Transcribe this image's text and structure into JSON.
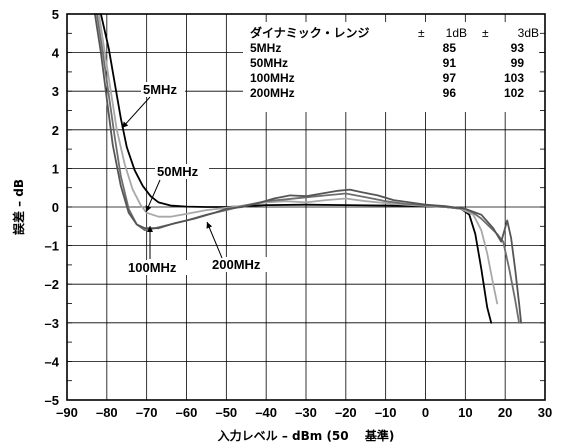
{
  "chart_data": {
    "type": "line",
    "title": "",
    "xlabel": "入力レベル – dBm (50",
    "xlabel_ref": "基準)",
    "ylabel": "誤差 – dB",
    "xlim": [
      -90,
      30
    ],
    "ylim": [
      -5,
      5
    ],
    "x_ticks": [
      "–90",
      "–80",
      "–70",
      "–60",
      "–50",
      "–40",
      "–30",
      "–20",
      "–10",
      "0",
      "10",
      "20",
      "30"
    ],
    "y_ticks": [
      "5",
      "4",
      "3",
      "2",
      "1",
      "0",
      "–1",
      "–2",
      "–3",
      "–4",
      "–5"
    ],
    "grid": true,
    "series": [
      {
        "name": "5MHz",
        "color": "#000000",
        "points": [
          [
            -81.5,
            5
          ],
          [
            -79.5,
            4.1
          ],
          [
            -78,
            3.2
          ],
          [
            -76.5,
            2.3
          ],
          [
            -75,
            1.55
          ],
          [
            -73,
            0.95
          ],
          [
            -71,
            0.55
          ],
          [
            -69,
            0.28
          ],
          [
            -67,
            0.12
          ],
          [
            -64,
            0.04
          ],
          [
            -60,
            0.01
          ],
          [
            -55,
            0.0
          ],
          [
            -50,
            0.0
          ],
          [
            -40,
            0.05
          ],
          [
            -30,
            0.06
          ],
          [
            -20,
            0.05
          ],
          [
            -10,
            0.04
          ],
          [
            0,
            0.02
          ],
          [
            5,
            0.0
          ],
          [
            9,
            -0.05
          ],
          [
            11,
            -0.2
          ],
          [
            12.5,
            -0.7
          ],
          [
            14,
            -1.6
          ],
          [
            15.5,
            -2.6
          ],
          [
            16.5,
            -3.0
          ]
        ]
      },
      {
        "name": "50MHz",
        "color": "#a8a8a8",
        "points": [
          [
            -82,
            5
          ],
          [
            -80.5,
            4.0
          ],
          [
            -79,
            3.0
          ],
          [
            -77.5,
            2.0
          ],
          [
            -75.5,
            1.1
          ],
          [
            -73.5,
            0.45
          ],
          [
            -71.5,
            0.05
          ],
          [
            -70,
            -0.15
          ],
          [
            -67,
            -0.25
          ],
          [
            -64,
            -0.25
          ],
          [
            -60,
            -0.18
          ],
          [
            -55,
            -0.08
          ],
          [
            -50,
            -0.02
          ],
          [
            -45,
            0.05
          ],
          [
            -40,
            0.12
          ],
          [
            -35,
            0.15
          ],
          [
            -30,
            0.12
          ],
          [
            -25,
            0.18
          ],
          [
            -20,
            0.22
          ],
          [
            -15,
            0.15
          ],
          [
            -10,
            0.1
          ],
          [
            -5,
            0.06
          ],
          [
            0,
            0.03
          ],
          [
            5,
            0.0
          ],
          [
            9,
            -0.05
          ],
          [
            12,
            -0.2
          ],
          [
            14,
            -0.6
          ],
          [
            15.5,
            -1.2
          ],
          [
            17,
            -2.0
          ],
          [
            18,
            -2.5
          ]
        ]
      },
      {
        "name": "100MHz",
        "color": "#6e6e6e",
        "points": [
          [
            -82.5,
            5
          ],
          [
            -81,
            4.0
          ],
          [
            -79.5,
            2.9
          ],
          [
            -78,
            1.8
          ],
          [
            -76.5,
            0.8
          ],
          [
            -74.5,
            -0.05
          ],
          [
            -72.5,
            -0.45
          ],
          [
            -70.5,
            -0.6
          ],
          [
            -68,
            -0.55
          ],
          [
            -64,
            -0.45
          ],
          [
            -60,
            -0.35
          ],
          [
            -55,
            -0.2
          ],
          [
            -50,
            -0.08
          ],
          [
            -45,
            0.05
          ],
          [
            -40,
            0.15
          ],
          [
            -35,
            0.2
          ],
          [
            -30,
            0.25
          ],
          [
            -25,
            0.3
          ],
          [
            -20,
            0.35
          ],
          [
            -15,
            0.25
          ],
          [
            -10,
            0.15
          ],
          [
            -5,
            0.08
          ],
          [
            0,
            0.05
          ],
          [
            5,
            0.0
          ],
          [
            10,
            -0.05
          ],
          [
            12,
            -0.15
          ],
          [
            14,
            -0.3
          ],
          [
            16,
            -0.5
          ],
          [
            18,
            -0.7
          ],
          [
            19.5,
            -0.9
          ],
          [
            21,
            -1.6
          ],
          [
            22.5,
            -2.4
          ],
          [
            23.5,
            -3.0
          ]
        ]
      },
      {
        "name": "200MHz",
        "color": "#555555",
        "points": [
          [
            -83,
            5
          ],
          [
            -81.5,
            4.0
          ],
          [
            -80,
            2.8
          ],
          [
            -78.5,
            1.6
          ],
          [
            -76.5,
            0.55
          ],
          [
            -74.5,
            -0.15
          ],
          [
            -72.5,
            -0.45
          ],
          [
            -70.5,
            -0.55
          ],
          [
            -67,
            -0.55
          ],
          [
            -63,
            -0.42
          ],
          [
            -58,
            -0.3
          ],
          [
            -53,
            -0.15
          ],
          [
            -50,
            -0.05
          ],
          [
            -46,
            0.0
          ],
          [
            -42,
            0.1
          ],
          [
            -38,
            0.22
          ],
          [
            -34,
            0.3
          ],
          [
            -30,
            0.28
          ],
          [
            -26,
            0.35
          ],
          [
            -22,
            0.42
          ],
          [
            -19,
            0.45
          ],
          [
            -16,
            0.38
          ],
          [
            -12,
            0.3
          ],
          [
            -8,
            0.18
          ],
          [
            -4,
            0.12
          ],
          [
            0,
            0.06
          ],
          [
            5,
            0.02
          ],
          [
            10,
            -0.05
          ],
          [
            14,
            -0.2
          ],
          [
            17,
            -0.55
          ],
          [
            19,
            -0.9
          ],
          [
            20.5,
            -0.35
          ],
          [
            21.5,
            -0.8
          ],
          [
            22.5,
            -1.6
          ],
          [
            23.5,
            -2.5
          ],
          [
            24,
            -3.0
          ]
        ]
      }
    ],
    "table": {
      "header": "ダイナミック・レンジ",
      "col1_label": "1dB",
      "col2_label": "3dB",
      "pm": "±",
      "rows": [
        {
          "label": "5MHz",
          "v1": "85",
          "v2": "93"
        },
        {
          "label": "50MHz",
          "v1": "91",
          "v2": "99"
        },
        {
          "label": "100MHz",
          "v1": "97",
          "v2": "103"
        },
        {
          "label": "200MHz",
          "v1": "96",
          "v2": "102"
        }
      ]
    },
    "callouts": [
      {
        "text": "5MHz",
        "series": "5MHz"
      },
      {
        "text": "50MHz",
        "series": "50MHz"
      },
      {
        "text": "100MHz",
        "series": "100MHz"
      },
      {
        "text": "200MHz",
        "series": "200MHz"
      }
    ]
  }
}
